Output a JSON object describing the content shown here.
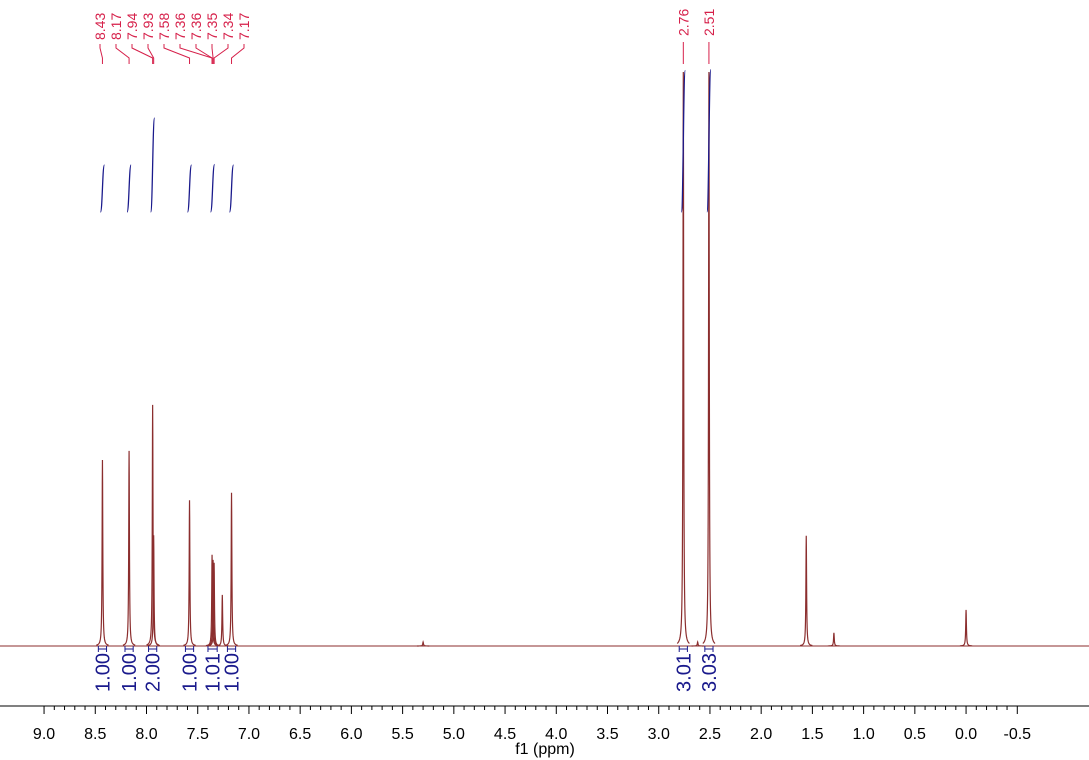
{
  "chart_data": {
    "type": "nmr",
    "x_label": "f1 (ppm)",
    "xlim": [
      9.43,
      -1.2
    ],
    "xticks": [
      {
        "value": 9.0,
        "label": "9.0"
      },
      8.5,
      {
        "value": 8.0,
        "label": "8.0"
      },
      7.5,
      {
        "value": 7.0,
        "label": "7.0"
      },
      6.5,
      {
        "value": 6.0,
        "label": "6.0"
      },
      5.5,
      {
        "value": 5.0,
        "label": "5.0"
      },
      4.5,
      {
        "value": 4.0,
        "label": "4.0"
      },
      3.5,
      {
        "value": 3.0,
        "label": "3.0"
      },
      2.5,
      {
        "value": 2.0,
        "label": "2.0"
      },
      1.5,
      {
        "value": 1.0,
        "label": "1.0"
      },
      0.5,
      {
        "value": 0.0,
        "label": "0.0"
      },
      -0.5
    ],
    "ylim": [
      0,
      100
    ],
    "color": "#8b2e2e",
    "x": [
      8.43,
      8.17,
      7.94,
      7.93,
      7.58,
      7.36,
      7.35,
      7.34,
      7.26,
      7.17,
      5.3,
      2.76,
      2.62,
      2.51,
      1.56,
      1.29,
      0.0
    ],
    "values": [
      32.4,
      34.0,
      42.0,
      19.3,
      25.4,
      15.9,
      15.0,
      14.5,
      8.9,
      26.7,
      0.7,
      100,
      0.7,
      100,
      19.2,
      2.3,
      6.3
    ],
    "peak_labels_left": [
      8.43,
      8.17,
      7.94,
      7.93,
      7.58,
      7.36,
      7.36,
      7.35,
      7.34,
      7.17
    ],
    "peak_labels_right": [
      2.76,
      2.51
    ],
    "peak_label_color": "#d6204a",
    "integral_color": "#1a1a8c",
    "integrals": [
      {
        "from": 8.47,
        "to": 8.39,
        "value": 1,
        "label": "1.00"
      },
      {
        "from": 8.21,
        "to": 8.13,
        "value": 1,
        "label": "1.00"
      },
      {
        "from": 7.98,
        "to": 7.9,
        "value": 2,
        "label": "2.00"
      },
      {
        "from": 7.62,
        "to": 7.54,
        "value": 1,
        "label": "1.00"
      },
      {
        "from": 7.4,
        "to": 7.31,
        "value": 1.01,
        "label": "1.01"
      },
      {
        "from": 7.21,
        "to": 7.13,
        "value": 1,
        "label": "1.00"
      },
      {
        "from": 2.8,
        "to": 2.72,
        "value": 3.01,
        "label": "3.01"
      },
      {
        "from": 2.55,
        "to": 2.47,
        "value": 3.03,
        "label": "3.03"
      }
    ]
  }
}
